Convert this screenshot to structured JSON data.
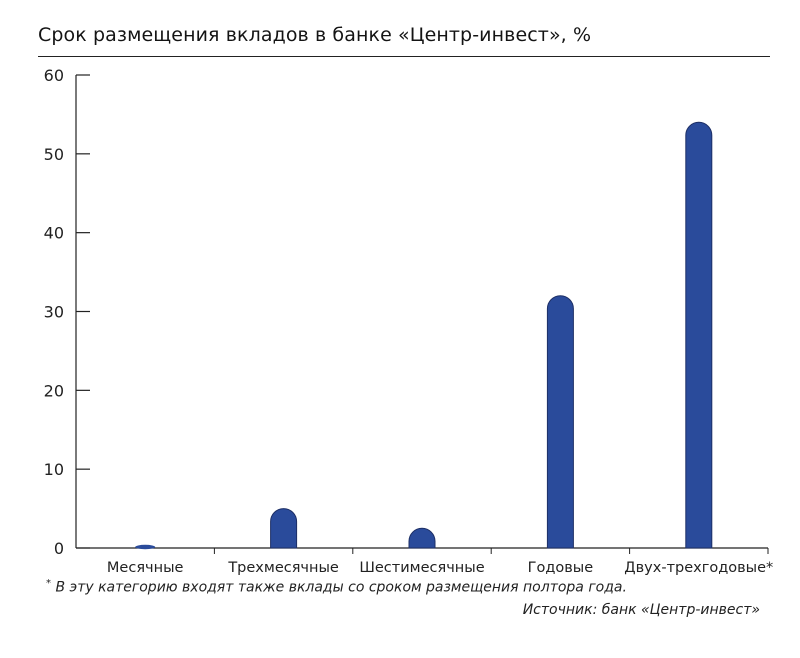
{
  "chart_data": {
    "type": "bar",
    "title": "Срок размещения вкладов в банке «Центр-инвест», %",
    "categories": [
      "Месячные",
      "Трехмесячные",
      "Шестимесячные",
      "Годовые",
      "Двух-трехгодовые*"
    ],
    "values": [
      0,
      5,
      2.5,
      32,
      54
    ],
    "ylim": [
      0,
      60
    ],
    "yticks": [
      0,
      10,
      20,
      30,
      40,
      50,
      60
    ],
    "xlabel": "",
    "ylabel": "",
    "grid": false,
    "bar_color": "#2a4b9b"
  },
  "footnote": "В эту категорию входят также вклады со сроком размещения полтора года.",
  "footnote_mark": "*",
  "source": "Источник: банк «Центр-инвест»"
}
